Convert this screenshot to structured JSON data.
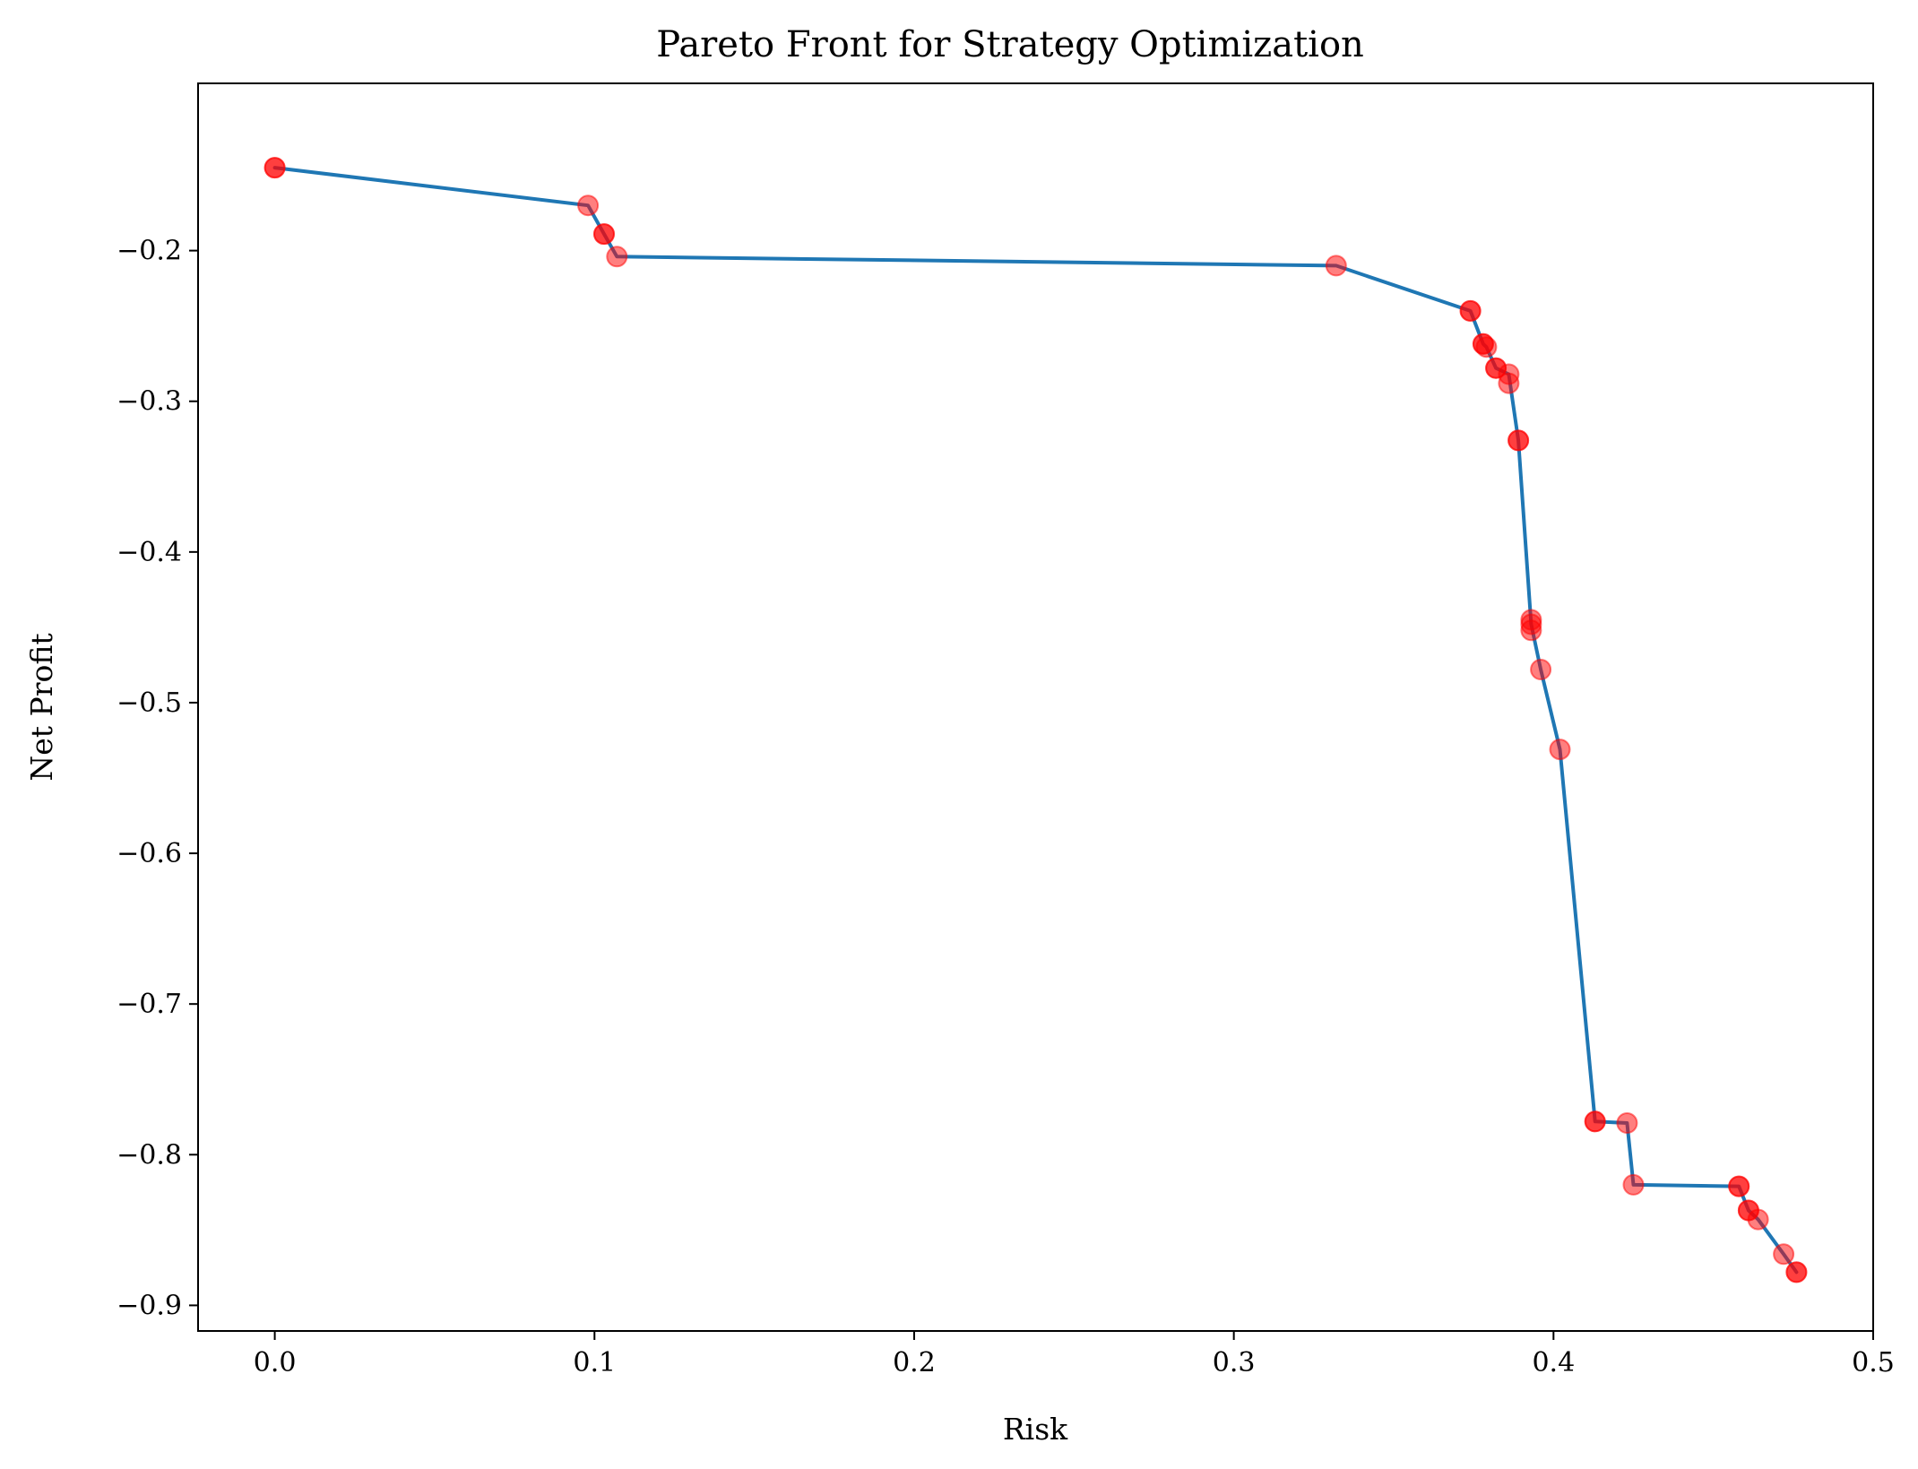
{
  "chart_data": {
    "type": "line",
    "title": "Pareto Front for Strategy Optimization",
    "xlabel": "Risk",
    "ylabel": "Net Profit",
    "xlim": [
      -0.024,
      0.5
    ],
    "ylim": [
      -0.917,
      -0.089
    ],
    "xticks": [
      0.0,
      0.1,
      0.2,
      0.3,
      0.4,
      0.5
    ],
    "xtick_labels": [
      "0.0",
      "0.1",
      "0.2",
      "0.3",
      "0.4",
      "0.5"
    ],
    "yticks": [
      -0.2,
      -0.3,
      -0.4,
      -0.5,
      -0.6,
      -0.7,
      -0.8,
      -0.9
    ],
    "ytick_labels": [
      "−0.2",
      "−0.3",
      "−0.4",
      "−0.5",
      "−0.6",
      "−0.7",
      "−0.8",
      "−0.9"
    ],
    "grid": false,
    "colors": {
      "line": "#1f77b4",
      "points": "#ff0000"
    },
    "series": [
      {
        "type": "line",
        "x": [
          0.0,
          0.098,
          0.103,
          0.107,
          0.332,
          0.374,
          0.378,
          0.379,
          0.382,
          0.386,
          0.389,
          0.393,
          0.396,
          0.402,
          0.413,
          0.423,
          0.425,
          0.458,
          0.461,
          0.464,
          0.472,
          0.476
        ],
        "y": [
          -0.145,
          -0.17,
          -0.189,
          -0.204,
          -0.21,
          -0.24,
          -0.262,
          -0.264,
          -0.278,
          -0.282,
          -0.326,
          -0.448,
          -0.478,
          -0.531,
          -0.778,
          -0.779,
          -0.82,
          -0.821,
          -0.837,
          -0.843,
          -0.866,
          -0.878
        ]
      },
      {
        "type": "scatter",
        "x": [
          0.0,
          0.0,
          0.098,
          0.103,
          0.103,
          0.107,
          0.332,
          0.374,
          0.374,
          0.378,
          0.378,
          0.379,
          0.382,
          0.382,
          0.386,
          0.386,
          0.389,
          0.389,
          0.393,
          0.393,
          0.393,
          0.396,
          0.402,
          0.413,
          0.413,
          0.423,
          0.425,
          0.458,
          0.458,
          0.461,
          0.461,
          0.464,
          0.472,
          0.476,
          0.476
        ],
        "y": [
          -0.145,
          -0.145,
          -0.17,
          -0.189,
          -0.189,
          -0.204,
          -0.21,
          -0.24,
          -0.24,
          -0.262,
          -0.262,
          -0.264,
          -0.278,
          -0.278,
          -0.282,
          -0.288,
          -0.326,
          -0.326,
          -0.445,
          -0.448,
          -0.452,
          -0.478,
          -0.531,
          -0.778,
          -0.778,
          -0.779,
          -0.82,
          -0.821,
          -0.821,
          -0.837,
          -0.837,
          -0.843,
          -0.866,
          -0.878,
          -0.878
        ]
      }
    ]
  }
}
